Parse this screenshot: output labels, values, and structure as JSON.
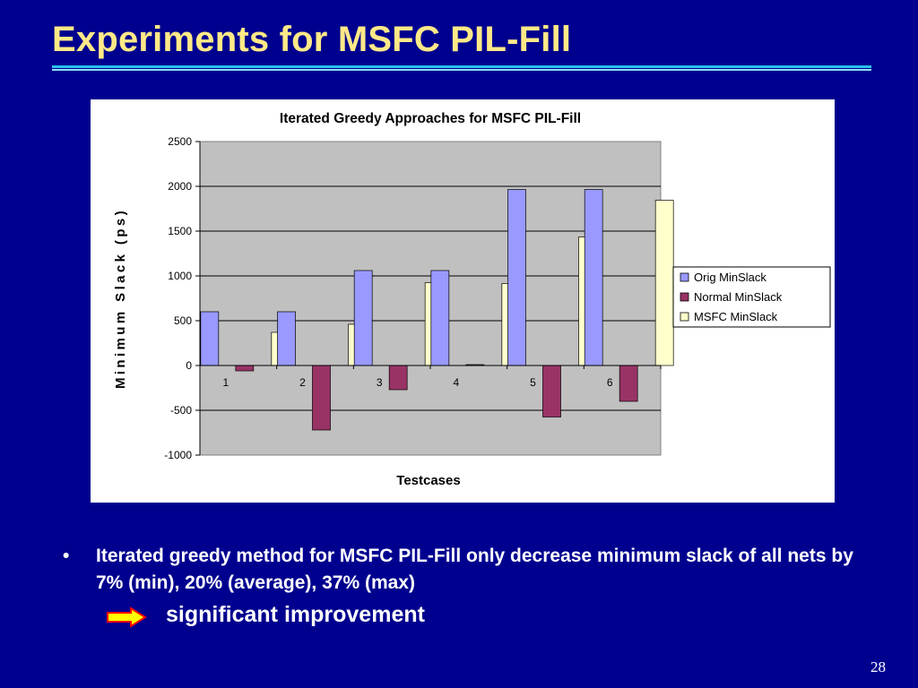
{
  "slide": {
    "title": "Experiments for MSFC PIL-Fill",
    "bullet_marker": "•",
    "bullet_text": "Iterated greedy method for MSFC PIL-Fill only decrease minimum slack of all nets by 7% (min), 20% (average), 37% (max)",
    "conclusion": "significant improvement",
    "page_number": "28",
    "arrow_icon": "right-arrow-icon"
  },
  "colors": {
    "background": "#00008f",
    "title": "#ffe987",
    "rule": "#29c2f0",
    "plot_area": "#c0c0c0",
    "arrow_fill": "#ffff00",
    "arrow_stroke": "#ff0000"
  },
  "chart_data": {
    "type": "bar",
    "title": "Iterated Greedy Approaches for MSFC PIL-Fill",
    "xlabel": "Testcases",
    "ylabel": "Minimum Slack (ps)",
    "categories": [
      "1",
      "2",
      "3",
      "4",
      "5",
      "6"
    ],
    "ylim": [
      -1000,
      2500
    ],
    "yticks": [
      2500,
      2000,
      1500,
      1000,
      500,
      0,
      -500,
      -1000
    ],
    "grid": true,
    "legend_position": "right",
    "series": [
      {
        "name": "Orig MinSlack",
        "color": "#9999ff",
        "values": [
          600,
          600,
          1060,
          1060,
          1965,
          1965
        ]
      },
      {
        "name": "Normal MinSlack",
        "color": "#993366",
        "values": [
          -60,
          -720,
          -270,
          10,
          -575,
          -400
        ]
      },
      {
        "name": "MSFC MinSlack",
        "color": "#ffffcc",
        "values": [
          370,
          460,
          925,
          915,
          1435,
          1845
        ]
      }
    ]
  }
}
